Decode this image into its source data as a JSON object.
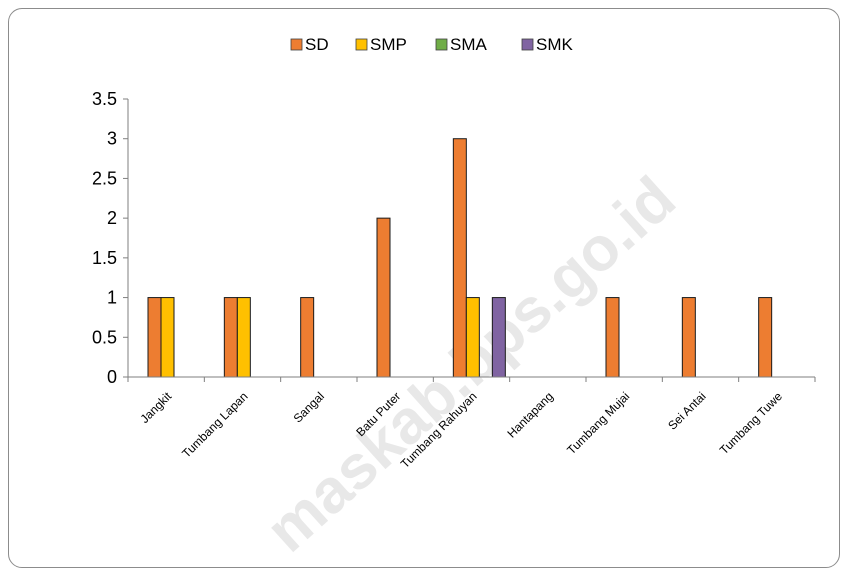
{
  "watermark": "maskab.bps.go.id",
  "colors": {
    "frame": "#8c8c8c",
    "axis": "#7f7f7f"
  },
  "chart_data": {
    "type": "bar",
    "title": "",
    "xlabel": "",
    "ylabel": "",
    "categories": [
      "Jangkit",
      "Tumbang Lapan",
      "Sangal",
      "Batu Puter",
      "Tumbang Rahuyan",
      "Hantapang",
      "Tumbang Mujai",
      "Sei Antai",
      "Tumbang Tuwe"
    ],
    "series": [
      {
        "name": "SD",
        "color": "#ed7d31",
        "values": [
          1,
          1,
          1,
          2,
          3,
          0,
          1,
          1,
          1
        ]
      },
      {
        "name": "SMP",
        "color": "#ffc000",
        "values": [
          1,
          1,
          0,
          0,
          1,
          0,
          0,
          0,
          0
        ]
      },
      {
        "name": "SMA",
        "color": "#70ad47",
        "values": [
          0,
          0,
          0,
          0,
          0,
          0,
          0,
          0,
          0
        ]
      },
      {
        "name": "SMK",
        "color": "#8064a2",
        "values": [
          0,
          0,
          0,
          0,
          1,
          0,
          0,
          0,
          0
        ]
      }
    ],
    "yticks": [
      "0",
      "0.5",
      "1",
      "1.5",
      "2",
      "2.5",
      "3",
      "3.5"
    ],
    "ylim": [
      0,
      3.5
    ],
    "grid": false,
    "legend_position": "top"
  }
}
